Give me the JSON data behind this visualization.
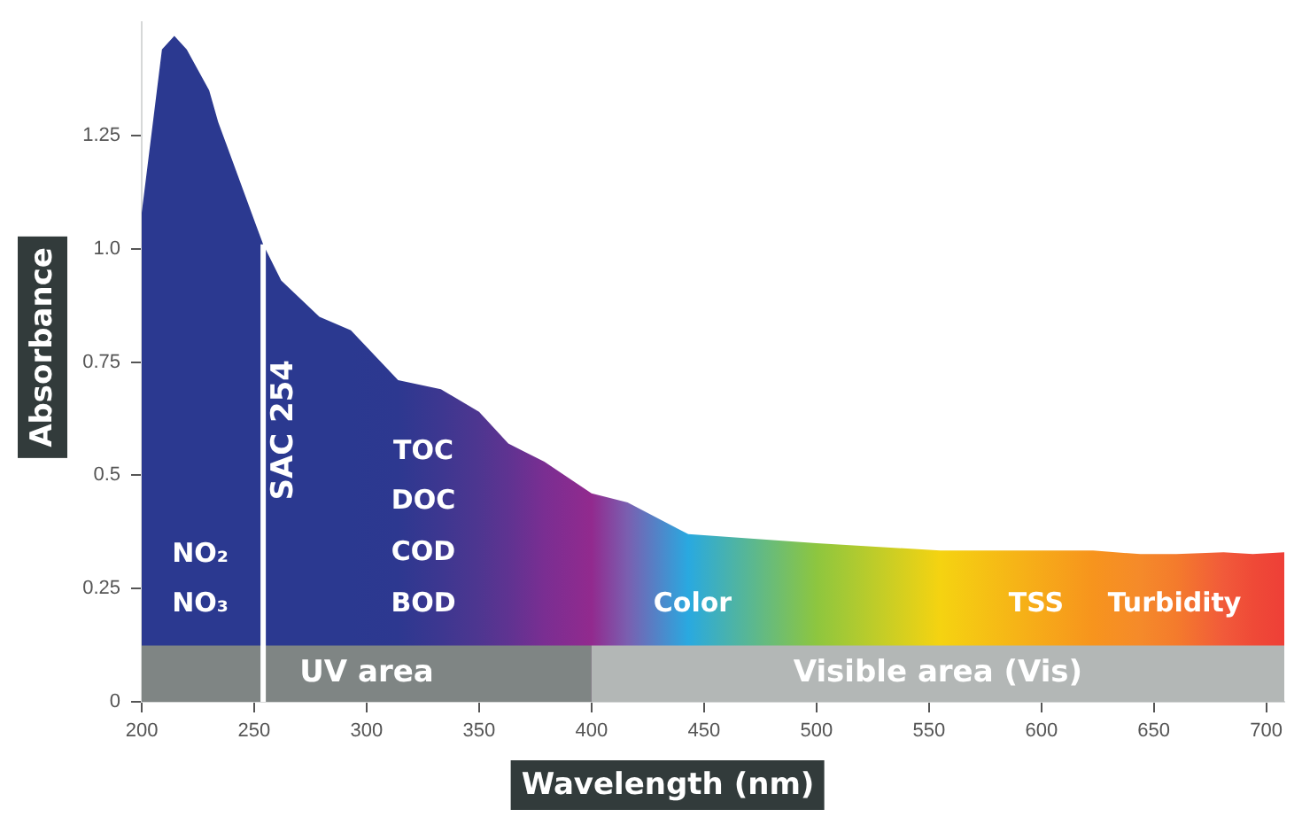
{
  "chart_data": {
    "type": "area",
    "xlabel": "Wavelength (nm)",
    "ylabel": "Absorbance",
    "x": [
      200,
      206,
      209,
      214.5,
      220,
      230,
      234,
      251,
      254,
      262,
      279,
      293,
      314,
      333,
      350,
      363,
      379,
      400,
      416,
      443,
      500,
      555,
      623,
      644,
      660,
      681,
      694,
      708
    ],
    "series": [
      {
        "values": [
          1.08,
          1.32,
          1.44,
          1.47,
          1.44,
          1.35,
          1.28,
          1.05,
          1.01,
          0.93,
          0.85,
          0.82,
          0.71,
          0.69,
          0.64,
          0.57,
          0.53,
          0.46,
          0.44,
          0.37,
          0.35,
          0.334,
          0.334,
          0.326,
          0.326,
          0.33,
          0.326,
          0.33
        ],
        "colors": [
          "#2b3990",
          "#2b3990",
          "#2b3990",
          "#2b3990",
          "#2b3990",
          "#2b3990",
          "#2b3990",
          "#2b3990",
          "#2b3990",
          "#2b3990",
          "#2b3990",
          "#2b3990",
          "#2d3890",
          "#3d3790",
          "#4e3690",
          "#5f3391",
          "#7a2e92",
          "#922a8e",
          "#7a5fb0",
          "#29a9e0",
          "#8dc63f",
          "#f5d311",
          "#f7941d",
          "#f58a2a",
          "#f47b2c",
          "#f15a3a",
          "#ef4a37",
          "#ee3f37"
        ]
      }
    ],
    "xlim": [
      200,
      708
    ],
    "xticks": [
      200,
      250,
      300,
      350,
      400,
      450,
      500,
      550,
      600,
      650,
      700
    ],
    "ylim": [
      0,
      1.5
    ],
    "yticks": [
      0,
      0.25,
      {
        "value": 0.5,
        "label": "0.5"
      },
      0.75,
      {
        "value": 1,
        "label": "1.0"
      },
      1.25
    ],
    "grid": false,
    "legend": false,
    "marker": "none",
    "bands": [
      {
        "axis": "x",
        "from": 200,
        "to": 400,
        "label": "UV area",
        "color": "#7f8584"
      },
      {
        "axis": "x",
        "from": 400,
        "to": 708,
        "label": "Visible area (Vis)",
        "color": "#b3b7b6"
      }
    ],
    "ref_lines": [
      {
        "axis": "x",
        "value": 254,
        "label": "SAC 254",
        "color": "#ffffff"
      }
    ],
    "annotations": [
      "NO₂",
      "NO₃",
      "TOC",
      "DOC",
      "COD",
      "BOD",
      "Color",
      "TSS",
      "Turbidity"
    ]
  }
}
